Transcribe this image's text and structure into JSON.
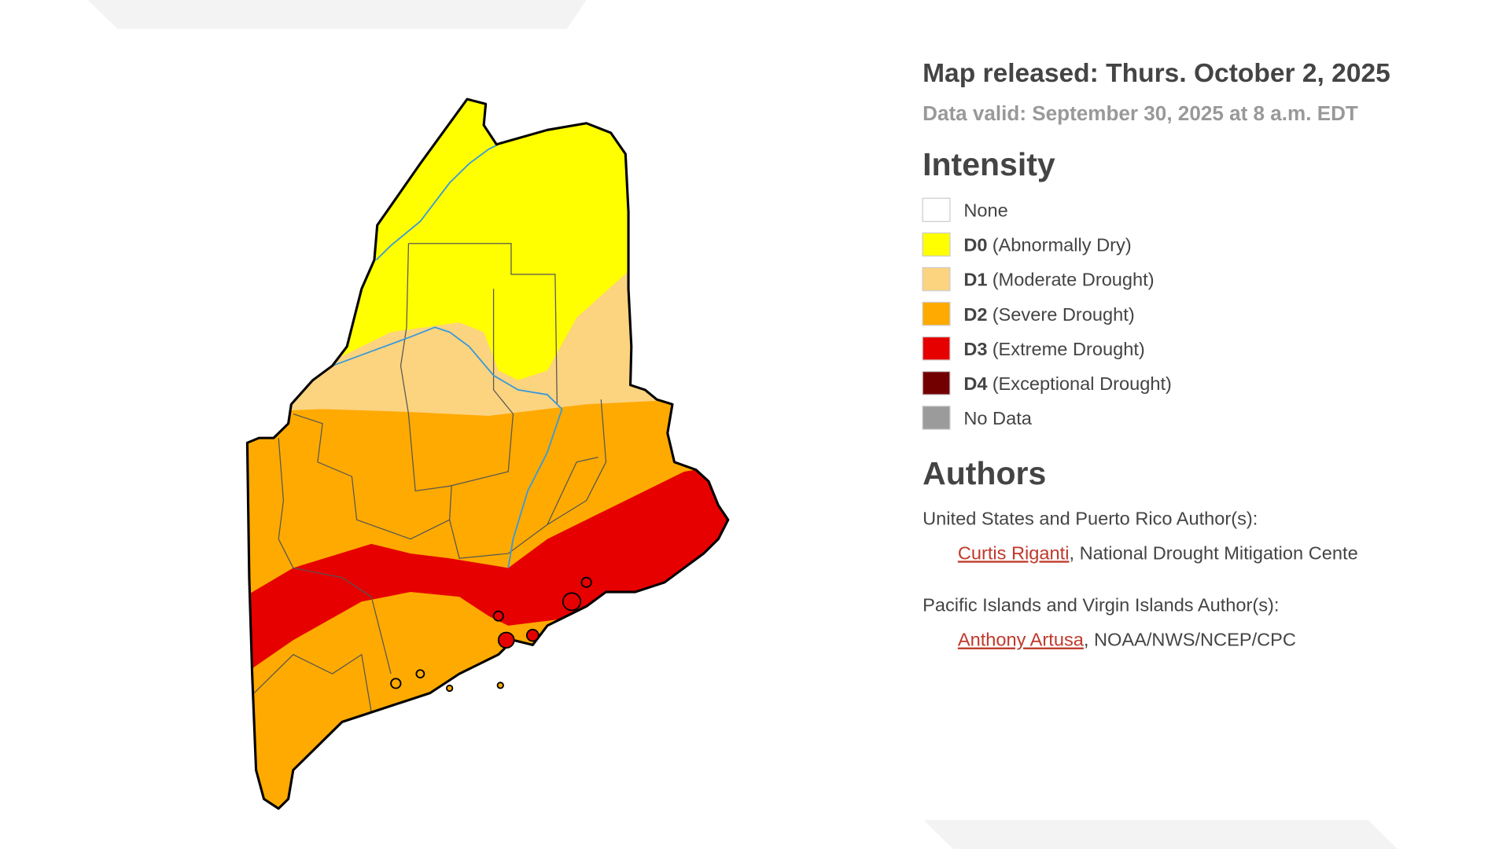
{
  "header": {
    "released": "Map released: Thurs. October 2, 2025",
    "valid": "Data valid: September 30, 2025 at 8 a.m. EDT"
  },
  "legend": {
    "title": "Intensity",
    "items": [
      {
        "label": "None",
        "color": "#ffffff"
      },
      {
        "code": "D0",
        "label": "(Abnormally Dry)",
        "color": "#ffff00"
      },
      {
        "code": "D1",
        "label": "(Moderate Drought)",
        "color": "#fcd37f"
      },
      {
        "code": "D2",
        "label": "(Severe Drought)",
        "color": "#ffaa00"
      },
      {
        "code": "D3",
        "label": "(Extreme Drought)",
        "color": "#e60000"
      },
      {
        "code": "D4",
        "label": "(Exceptional Drought)",
        "color": "#730000"
      },
      {
        "label": "No Data",
        "color": "#9b9b9b"
      }
    ]
  },
  "authors": {
    "title": "Authors",
    "sections": [
      {
        "heading": "United States and Puerto Rico Author(s):",
        "name": "Curtis Riganti",
        "affiliation": ", National Drought Mitigation Cente"
      },
      {
        "heading": "Pacific Islands and Virgin Islands Author(s):",
        "name": "Anthony Artusa",
        "affiliation": ", NOAA/NWS/NCEP/CPC"
      }
    ]
  }
}
